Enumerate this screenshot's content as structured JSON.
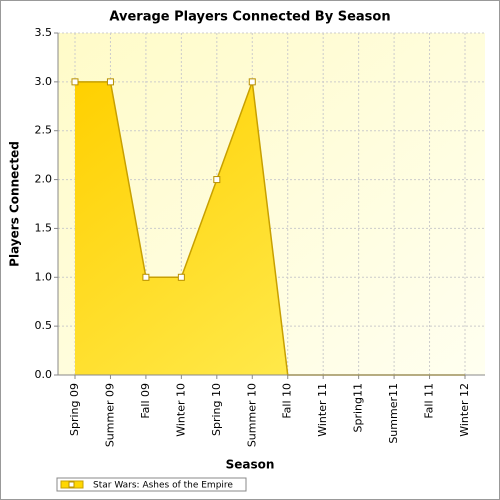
{
  "chart_data": {
    "type": "area",
    "title": "Average Players Connected By Season",
    "x_label": "Season",
    "y_label": "Players Connected",
    "categories": [
      "Spring 09",
      "Summer 09",
      "Fall 09",
      "Winter 10",
      "Spring 10",
      "Summer 10",
      "Fall 10",
      "Winter 11",
      "Spring11",
      "Summer11",
      "Fall 11",
      "Winter 12"
    ],
    "series": [
      {
        "name": "Star Wars: Ashes of the Empire",
        "color": "#ffd700",
        "values": [
          3,
          3,
          1,
          1,
          2,
          3,
          0,
          0,
          0,
          0,
          0,
          0
        ]
      }
    ],
    "ylim": [
      0,
      3.5
    ],
    "yticks": [
      {
        "value": 0,
        "label": "0.0"
      },
      {
        "value": 0.5,
        "label": "0.5"
      },
      {
        "value": 1,
        "label": "1.0"
      },
      {
        "value": 1.5,
        "label": "1.5"
      },
      {
        "value": 2,
        "label": "2.0"
      },
      {
        "value": 2.5,
        "label": "2.5"
      },
      {
        "value": 3,
        "label": "3.0"
      },
      {
        "value": 3.5,
        "label": "3.5"
      }
    ],
    "grid": true
  }
}
